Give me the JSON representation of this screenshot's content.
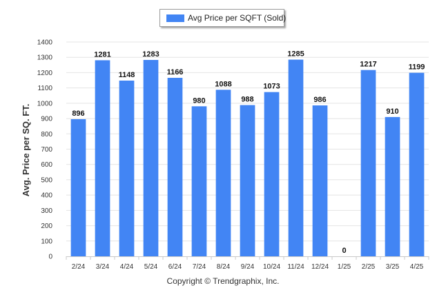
{
  "footer": {
    "copyright": "Copyright © Trendgraphix, Inc."
  },
  "chart_data": {
    "type": "bar",
    "title": "",
    "xlabel": "",
    "ylabel": "Avg. Price per SQ. FT.",
    "ylim": [
      0,
      1400
    ],
    "yticks": [
      0,
      100,
      200,
      300,
      400,
      500,
      600,
      700,
      800,
      900,
      1000,
      1100,
      1200,
      1300,
      1400
    ],
    "grid": true,
    "legend_position": "top-center",
    "bar_color": "#4285F4",
    "categories": [
      "2/24",
      "3/24",
      "4/24",
      "5/24",
      "6/24",
      "7/24",
      "8/24",
      "9/24",
      "10/24",
      "11/24",
      "12/24",
      "1/25",
      "2/25",
      "3/25",
      "4/25"
    ],
    "series": [
      {
        "name": "Avg Price per SQFT (Sold)",
        "values": [
          896,
          1281,
          1148,
          1283,
          1166,
          980,
          1088,
          988,
          1073,
          1285,
          986,
          0,
          1217,
          910,
          1199
        ]
      }
    ]
  }
}
